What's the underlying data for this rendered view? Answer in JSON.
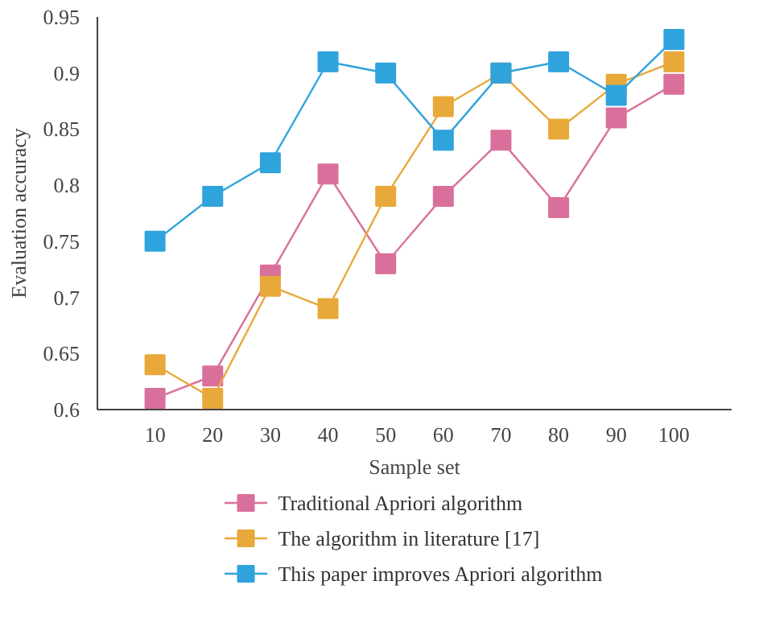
{
  "chart_data": {
    "type": "line",
    "xlabel": "Sample set",
    "ylabel": "Evaluation accuracy",
    "x": [
      10,
      20,
      30,
      40,
      50,
      60,
      70,
      80,
      90,
      100
    ],
    "series": [
      {
        "name": "Traditional Apriori algorithm",
        "color": "#d9709b",
        "values": [
          0.61,
          0.63,
          0.72,
          0.81,
          0.73,
          0.79,
          0.84,
          0.78,
          0.86,
          0.89
        ]
      },
      {
        "name": "The algorithm in literature [17]",
        "color": "#e8a93a",
        "values": [
          0.64,
          0.61,
          0.71,
          0.69,
          0.79,
          0.87,
          0.9,
          0.85,
          0.89,
          0.91
        ]
      },
      {
        "name": "This paper improves Apriori algorithm",
        "color": "#2fa3dc",
        "values": [
          0.75,
          0.79,
          0.82,
          0.91,
          0.9,
          0.84,
          0.9,
          0.91,
          0.88,
          0.93
        ]
      }
    ],
    "xlim": [
      0,
      110
    ],
    "xticks": [
      10,
      20,
      30,
      40,
      50,
      60,
      70,
      80,
      90,
      100
    ],
    "ylim": [
      0.6,
      0.95
    ],
    "yticks": [
      {
        "value": 0.6,
        "label": "0.6"
      },
      {
        "value": 0.65,
        "label": "0.65"
      },
      {
        "value": 0.7,
        "label": "0.7"
      },
      {
        "value": 0.75,
        "label": "0.75"
      },
      {
        "value": 0.8,
        "label": "0.8"
      },
      {
        "value": 0.85,
        "label": "0.85"
      },
      {
        "value": 0.9,
        "label": "0.9"
      },
      {
        "value": 0.95,
        "label": "0.95"
      }
    ],
    "grid": false,
    "legend": "bottom",
    "marker": "square",
    "line_style": "solid"
  }
}
